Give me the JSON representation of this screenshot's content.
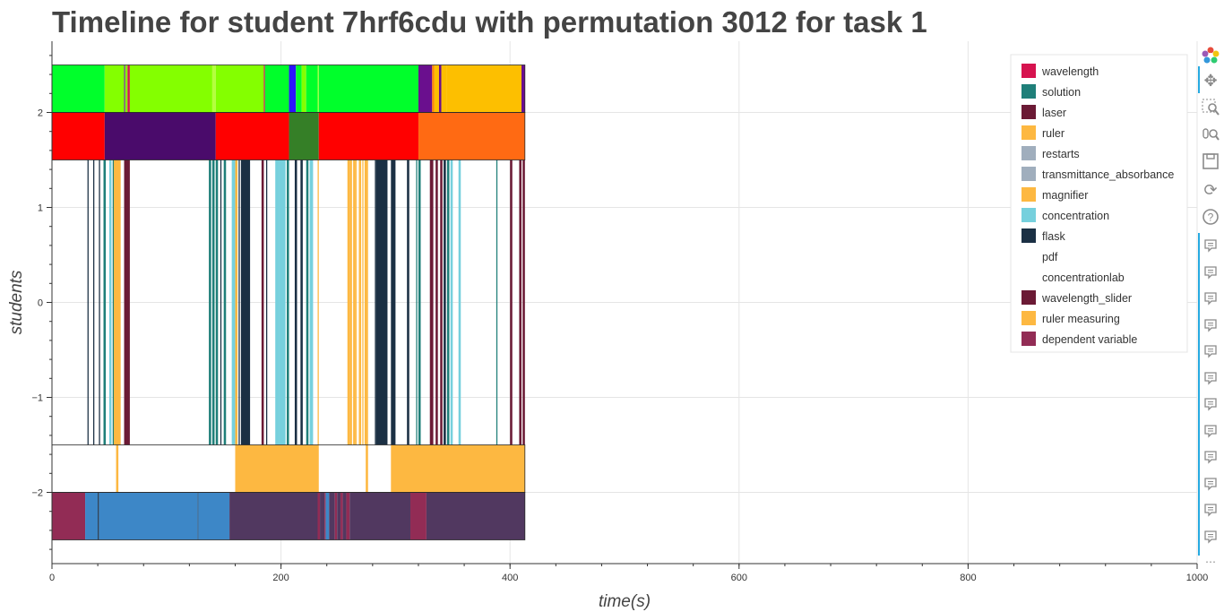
{
  "title": "Timeline for student 7hrf6cdu with permutation 3012 for task 1",
  "chart_data": {
    "type": "timeline",
    "title": "Timeline for student 7hrf6cdu with permutation 3012 for task 1",
    "xlabel": "time(s)",
    "ylabel": "students",
    "xlim": [
      0,
      1000
    ],
    "ylim": [
      -2.75,
      2.75
    ],
    "xticks": [
      0,
      200,
      400,
      600,
      800,
      1000
    ],
    "yticks": [
      -2,
      -1,
      0,
      1,
      2
    ],
    "grid": true,
    "legend_position": "top-right",
    "legend": [
      {
        "label": "wavelength",
        "color": "#d6134f"
      },
      {
        "label": "solution",
        "color": "#1f7f79"
      },
      {
        "label": "laser",
        "color": "#6b1a35"
      },
      {
        "label": "ruler",
        "color": "#fdb841"
      },
      {
        "label": "restarts",
        "color": "#a0aebd"
      },
      {
        "label": "transmittance_absorbance",
        "color": "#a0aebd"
      },
      {
        "label": "magnifier",
        "color": "#fdb841"
      },
      {
        "label": "concentration",
        "color": "#76d0dd"
      },
      {
        "label": "flask",
        "color": "#1b3044"
      },
      {
        "label": "pdf",
        "color": "#ffffff"
      },
      {
        "label": "concentrationlab",
        "color": "#ffffff"
      },
      {
        "label": "wavelength_slider",
        "color": "#6b1a35"
      },
      {
        "label": "ruler measuring",
        "color": "#fdb841"
      },
      {
        "label": "dependent variable",
        "color": "#922c55"
      }
    ],
    "rows": [
      {
        "y_range": [
          2,
          2.5
        ],
        "segments": [
          [
            0,
            46,
            "#00ff2b"
          ],
          [
            46,
            63,
            "#84ff00"
          ],
          [
            63,
            64,
            "#7b1fa2"
          ],
          [
            64,
            66,
            "#84ff00"
          ],
          [
            66,
            68,
            "#d6134f"
          ],
          [
            68,
            140,
            "#84ff00"
          ],
          [
            140,
            143,
            "#b5ff3d"
          ],
          [
            143,
            185,
            "#84ff00"
          ],
          [
            185,
            186,
            "#d6134f"
          ],
          [
            186,
            207,
            "#00ff2b"
          ],
          [
            207,
            213,
            "#2b14ff"
          ],
          [
            213,
            218,
            "#00ff2b"
          ],
          [
            218,
            222,
            "#84ff00"
          ],
          [
            222,
            232,
            "#00ff2b"
          ],
          [
            232,
            233,
            "#b5ff3d"
          ],
          [
            233,
            320,
            "#00ff2b"
          ],
          [
            320,
            332,
            "#6a0f8e"
          ],
          [
            332,
            334,
            "#ff8c00"
          ],
          [
            334,
            338,
            "#fdbf00"
          ],
          [
            338,
            340,
            "#6a0f8e"
          ],
          [
            340,
            345,
            "#fdbf00"
          ],
          [
            345,
            410,
            "#fdbf00"
          ],
          [
            410,
            413,
            "#6a0f8e"
          ]
        ]
      },
      {
        "y_range": [
          1.5,
          2
        ],
        "segments": [
          [
            0,
            46,
            "#ff0000"
          ],
          [
            46,
            143,
            "#4a0b6b"
          ],
          [
            143,
            207,
            "#ff0000"
          ],
          [
            207,
            233,
            "#357f27"
          ],
          [
            233,
            320,
            "#ff0000"
          ],
          [
            320,
            413,
            "#ff6a13"
          ]
        ]
      },
      {
        "y_range": [
          -1.5,
          1.5
        ],
        "segments": [
          [
            31,
            32,
            "#1b3044"
          ],
          [
            36,
            37,
            "#1b3044"
          ],
          [
            41,
            42,
            "#1b3044"
          ],
          [
            45,
            47,
            "#1f7f79"
          ],
          [
            50,
            52,
            "#76d0dd"
          ],
          [
            53,
            54,
            "#1f7f79"
          ],
          [
            54,
            60,
            "#fdb841"
          ],
          [
            63,
            68,
            "#6b1a35"
          ],
          [
            137,
            139,
            "#1f7f79"
          ],
          [
            140,
            142,
            "#1f7f79"
          ],
          [
            143,
            145,
            "#1f7f79"
          ],
          [
            147,
            148,
            "#1b3044"
          ],
          [
            150,
            152,
            "#1f7f79"
          ],
          [
            157,
            160,
            "#76d0dd"
          ],
          [
            160,
            162,
            "#fdb841"
          ],
          [
            163,
            164,
            "#1b3044"
          ],
          [
            165,
            173,
            "#1b3044"
          ],
          [
            183,
            185,
            "#6b1a35"
          ],
          [
            187,
            188,
            "#1b3044"
          ],
          [
            195,
            198,
            "#76d0dd"
          ],
          [
            198,
            204,
            "#76d0dd"
          ],
          [
            205,
            207,
            "#1f7f79"
          ],
          [
            212,
            214,
            "#1b3044"
          ],
          [
            217,
            219,
            "#1b3044"
          ],
          [
            222,
            224,
            "#1f7f79"
          ],
          [
            225,
            228,
            "#76d0dd"
          ],
          [
            232,
            233,
            "#fdb841"
          ],
          [
            258,
            260,
            "#fdb841"
          ],
          [
            260,
            262,
            "#fdb841"
          ],
          [
            263,
            265,
            "#fdb841"
          ],
          [
            265,
            266,
            "#fdb841"
          ],
          [
            268,
            270,
            "#fdb841"
          ],
          [
            271,
            272,
            "#fdb841"
          ],
          [
            273,
            275,
            "#fdb841"
          ],
          [
            275,
            276,
            "#fdb841"
          ],
          [
            282,
            283,
            "#1b3044"
          ],
          [
            283,
            293,
            "#1b3044"
          ],
          [
            296,
            300,
            "#1b3044"
          ],
          [
            310,
            312,
            "#1b3044"
          ],
          [
            318,
            319,
            "#1f7f79"
          ],
          [
            320,
            322,
            "#1f7f79"
          ],
          [
            330,
            333,
            "#6b1a35"
          ],
          [
            335,
            337,
            "#6b1a35"
          ],
          [
            339,
            341,
            "#6b1a35"
          ],
          [
            342,
            344,
            "#1b3044"
          ],
          [
            345,
            347,
            "#1f7f79"
          ],
          [
            348,
            350,
            "#76d0dd"
          ],
          [
            355,
            357,
            "#76d0dd"
          ],
          [
            388,
            389,
            "#1f7f79"
          ],
          [
            400,
            402,
            "#6b1a35"
          ],
          [
            408,
            410,
            "#6b1a35"
          ],
          [
            411,
            413,
            "#6b1a35"
          ]
        ]
      },
      {
        "y_range": [
          -2,
          -1.5
        ],
        "segments": [
          [
            56,
            58,
            "#fdb841"
          ],
          [
            160,
            233,
            "#fdb841"
          ],
          [
            274,
            276,
            "#fdb841"
          ],
          [
            296,
            413,
            "#fdb841"
          ]
        ]
      },
      {
        "y_range": [
          -2.5,
          -2
        ],
        "segments": [
          [
            0,
            29,
            "#922c55"
          ],
          [
            29,
            40,
            "#3d87c7"
          ],
          [
            40,
            41,
            "#1b3044"
          ],
          [
            41,
            127,
            "#3d87c7"
          ],
          [
            127,
            128,
            "#2c5f8f"
          ],
          [
            128,
            155,
            "#3d87c7"
          ],
          [
            155,
            232,
            "#513860"
          ],
          [
            232,
            234,
            "#922c55"
          ],
          [
            234,
            238,
            "#513860"
          ],
          [
            238,
            239,
            "#922c55"
          ],
          [
            239,
            242,
            "#3d87c7"
          ],
          [
            242,
            247,
            "#513860"
          ],
          [
            247,
            249,
            "#922c55"
          ],
          [
            249,
            252,
            "#513860"
          ],
          [
            252,
            254,
            "#922c55"
          ],
          [
            254,
            257,
            "#513860"
          ],
          [
            257,
            260,
            "#922c55"
          ],
          [
            260,
            313,
            "#513860"
          ],
          [
            313,
            327,
            "#922c55"
          ],
          [
            327,
            413,
            "#513860"
          ]
        ]
      }
    ]
  },
  "toolbar": {
    "tools": [
      "bokeh-logo-icon",
      "pan-icon",
      "box-zoom-icon",
      "wheel-zoom-icon",
      "save-icon",
      "reset-icon",
      "help-icon"
    ]
  }
}
